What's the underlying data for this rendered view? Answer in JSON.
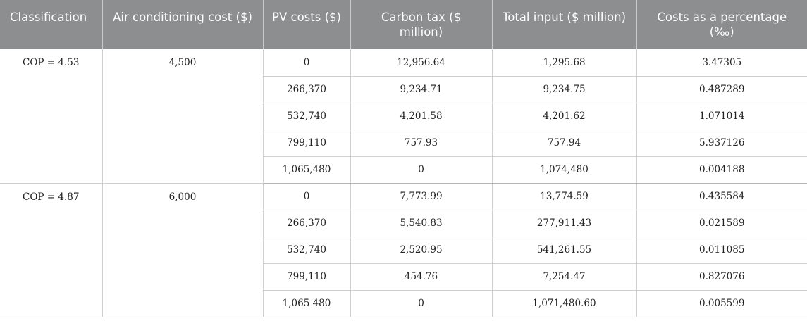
{
  "headers": [
    "Classification",
    "Air conditioning cost ($)",
    "PV costs ($)",
    "Carbon tax ($ million)",
    "Total input ($ million)",
    "Costs as a percentage (‰)"
  ],
  "groups": [
    {
      "classification": "COP = 4.53",
      "air_conditioning_cost": "4,500",
      "rows": [
        {
          "pv": "0",
          "carbon": "12,956.64",
          "total": "1,295.68",
          "pct": "3.47305"
        },
        {
          "pv": "266,370",
          "carbon": "9,234.71",
          "total": "9,234.75",
          "pct": "0.487289"
        },
        {
          "pv": "532,740",
          "carbon": "4,201.58",
          "total": "4,201.62",
          "pct": "1.071014"
        },
        {
          "pv": "799,110",
          "carbon": "757.93",
          "total": "757.94",
          "pct": "5.937126"
        },
        {
          "pv": "1,065,480",
          "carbon": "0",
          "total": "1,074,480",
          "pct": "0.004188"
        }
      ]
    },
    {
      "classification": "COP = 4.87",
      "air_conditioning_cost": "6,000",
      "rows": [
        {
          "pv": "0",
          "carbon": "7,773.99",
          "total": "13,774.59",
          "pct": "0.435584"
        },
        {
          "pv": "266,370",
          "carbon": "5,540.83",
          "total": "277,911.43",
          "pct": "0.021589"
        },
        {
          "pv": "532,740",
          "carbon": "2,520.95",
          "total": "541,261.55",
          "pct": "0.011085"
        },
        {
          "pv": "799,110",
          "carbon": "454.76",
          "total": "7,254.47",
          "pct": "0.827076"
        },
        {
          "pv": "1,065 480",
          "carbon": "0",
          "total": "1,071,480.60",
          "pct": "0.005599"
        }
      ]
    }
  ]
}
